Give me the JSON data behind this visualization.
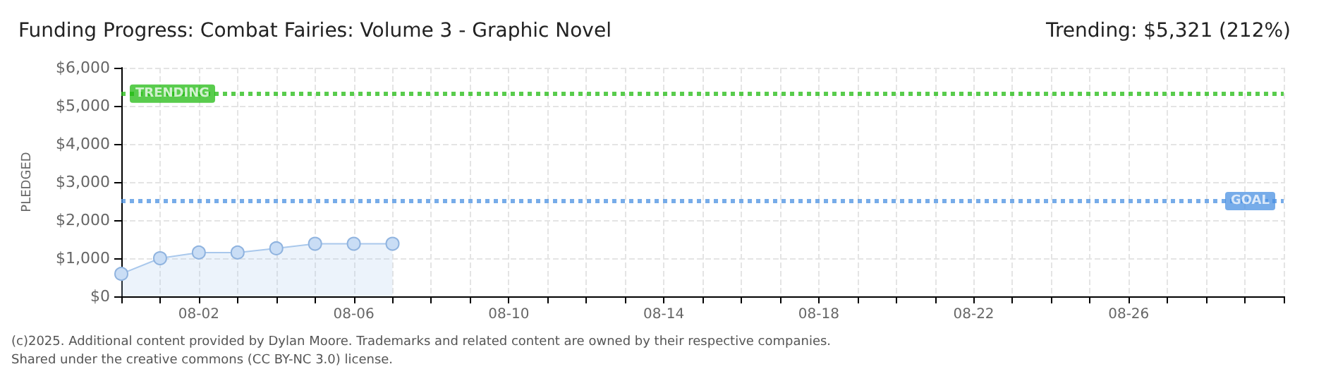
{
  "chart_data": {
    "type": "area",
    "title": "Funding Progress: Combat Fairies: Volume 3 - Graphic Novel",
    "subtitle": "Trending: $5,321 (212%)",
    "ylabel": "PLEDGED",
    "categories": [
      null,
      null,
      "08-02",
      null,
      null,
      null,
      "08-06",
      null,
      null,
      null,
      "08-10",
      null,
      null,
      null,
      "08-14",
      null,
      null,
      null,
      "08-18",
      null,
      null,
      null,
      "08-22",
      null,
      null,
      null,
      "08-26",
      null,
      null,
      null,
      null
    ],
    "series": [
      {
        "color": "#a9c8ec",
        "values": [
          590,
          1000,
          1150,
          1150,
          1260,
          1380,
          1380,
          1380,
          null,
          null,
          null,
          null,
          null,
          null,
          null,
          null,
          null,
          null,
          null,
          null,
          null,
          null,
          null,
          null,
          null,
          null,
          null,
          null,
          null,
          null,
          null
        ]
      }
    ],
    "ylim": [
      0,
      6000
    ],
    "yticks": [
      {
        "value": 0,
        "label": "$0"
      },
      {
        "value": 1000,
        "label": "$1,000"
      },
      {
        "value": 2000,
        "label": "$2,000"
      },
      {
        "value": 3000,
        "label": "$3,000"
      },
      {
        "value": 4000,
        "label": "$4,000"
      },
      {
        "value": 5000,
        "label": "$5,000"
      },
      {
        "value": 6000,
        "label": "$6,000"
      }
    ],
    "ref_lines": [
      {
        "axis": "y",
        "value": 5321,
        "label": "TRENDING",
        "color": "#22bb11",
        "line_style": "dotted"
      },
      {
        "axis": "y",
        "value": 2500,
        "label": "GOAL",
        "color": "#4a90e2",
        "line_style": "dotted"
      }
    ],
    "grid": true,
    "marker": "circle",
    "annotations": [
      "(c)2025. Additional content provided by Dylan Moore. Trademarks and related content are owned by their respective companies.",
      "Shared under the creative commons (CC BY-NC 3.0) license."
    ]
  }
}
